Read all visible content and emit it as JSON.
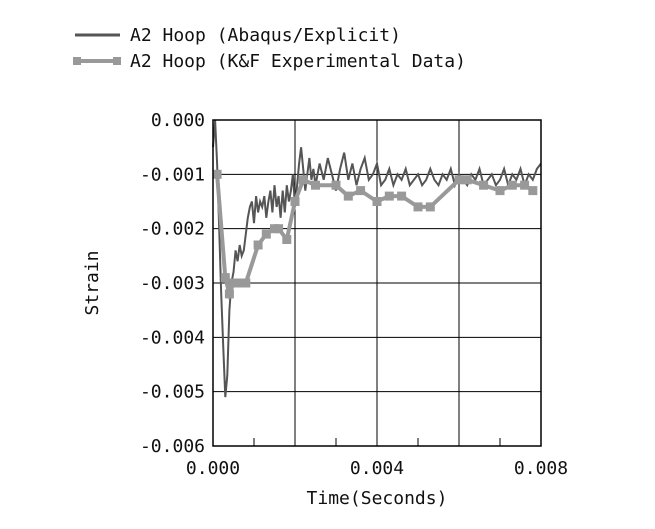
{
  "chart_data": {
    "type": "line",
    "title": "",
    "xlabel": "Time(Seconds)",
    "ylabel": "Strain",
    "xlim": [
      0.0,
      0.008
    ],
    "ylim": [
      -0.006,
      0.0
    ],
    "x_ticks": [
      0.0,
      0.002,
      0.004,
      0.006,
      0.008
    ],
    "x_tick_labels": [
      "0.000",
      "",
      "0.004",
      "",
      "0.008"
    ],
    "y_ticks": [
      0.0,
      -0.001,
      -0.002,
      -0.003,
      -0.004,
      -0.005,
      -0.006
    ],
    "y_tick_labels": [
      "0.000",
      "-0.001",
      "-0.002",
      "-0.003",
      "-0.004",
      "-0.005",
      "-0.006"
    ],
    "grid": true,
    "legend_position": "top-left",
    "series": [
      {
        "name": "A2 Hoop (Abaqus/Explicit)",
        "color": "#555555",
        "marker": "none",
        "x": [
          0.0,
          5e-05,
          0.0001,
          0.00015,
          0.0002,
          0.00025,
          0.0003,
          0.00035,
          0.0004,
          0.00045,
          0.0005,
          0.00055,
          0.0006,
          0.00065,
          0.0007,
          0.00075,
          0.0008,
          0.00085,
          0.0009,
          0.00095,
          0.001,
          0.00105,
          0.0011,
          0.00115,
          0.0012,
          0.00125,
          0.0013,
          0.00135,
          0.0014,
          0.00145,
          0.0015,
          0.00155,
          0.0016,
          0.00165,
          0.0017,
          0.00175,
          0.0018,
          0.00185,
          0.0019,
          0.00195,
          0.002,
          0.00205,
          0.0021,
          0.00215,
          0.0022,
          0.00225,
          0.0023,
          0.00235,
          0.0024,
          0.00245,
          0.0025,
          0.0026,
          0.0027,
          0.0028,
          0.0029,
          0.003,
          0.0031,
          0.0032,
          0.0033,
          0.0034,
          0.0035,
          0.0036,
          0.0037,
          0.0038,
          0.0039,
          0.004,
          0.0041,
          0.0042,
          0.0043,
          0.0044,
          0.0045,
          0.0046,
          0.0047,
          0.0048,
          0.0049,
          0.005,
          0.0051,
          0.0052,
          0.0053,
          0.0054,
          0.0055,
          0.0056,
          0.0057,
          0.0058,
          0.0059,
          0.006,
          0.0061,
          0.0062,
          0.0063,
          0.0064,
          0.0065,
          0.0066,
          0.0067,
          0.0068,
          0.0069,
          0.007,
          0.0071,
          0.0072,
          0.0073,
          0.0074,
          0.0075,
          0.0076,
          0.0077,
          0.0078,
          0.0079,
          0.008
        ],
        "y": [
          -0.0005,
          0.0,
          -0.0008,
          -0.002,
          -0.0032,
          -0.0042,
          -0.0051,
          -0.0047,
          -0.0035,
          -0.003,
          -0.0028,
          -0.0024,
          -0.0026,
          -0.0023,
          -0.0025,
          -0.0024,
          -0.0021,
          -0.0018,
          -0.0016,
          -0.0015,
          -0.0019,
          -0.0014,
          -0.0017,
          -0.0015,
          -0.0016,
          -0.0014,
          -0.0018,
          -0.0015,
          -0.0013,
          -0.0017,
          -0.0012,
          -0.0016,
          -0.0014,
          -0.0018,
          -0.0013,
          -0.0017,
          -0.0012,
          -0.0015,
          -0.0013,
          -0.001,
          -0.0016,
          -0.0012,
          -0.0008,
          -0.0005,
          -0.0009,
          -0.0013,
          -0.001,
          -0.0007,
          -0.0011,
          -0.0009,
          -0.0012,
          -0.0008,
          -0.0011,
          -0.0007,
          -0.001,
          -0.0013,
          -0.0009,
          -0.0006,
          -0.0011,
          -0.0008,
          -0.0012,
          -0.0009,
          -0.0007,
          -0.0011,
          -0.001,
          -0.0008,
          -0.0012,
          -0.0011,
          -0.0009,
          -0.0012,
          -0.001,
          -0.0011,
          -0.0009,
          -0.0012,
          -0.0011,
          -0.001,
          -0.0012,
          -0.0011,
          -0.0009,
          -0.0011,
          -0.0012,
          -0.001,
          -0.0011,
          -0.0009,
          -0.0012,
          -0.001,
          -0.0011,
          -0.0012,
          -0.001,
          -0.0011,
          -0.0009,
          -0.0012,
          -0.0011,
          -0.001,
          -0.0012,
          -0.0011,
          -0.0009,
          -0.0012,
          -0.001,
          -0.0011,
          -0.0009,
          -0.0012,
          -0.001,
          -0.0011,
          -0.0009,
          -0.0008
        ]
      },
      {
        "name": "A2 Hoop (K&F Experimental Data)",
        "color": "#999999",
        "marker": "square",
        "x": [
          0.0001,
          0.0003,
          0.0004,
          0.0005,
          0.0006,
          0.0007,
          0.0008,
          0.0011,
          0.0013,
          0.0015,
          0.0016,
          0.0018,
          0.002,
          0.0022,
          0.0025,
          0.003,
          0.0033,
          0.0036,
          0.004,
          0.0043,
          0.0046,
          0.005,
          0.0053,
          0.006,
          0.0062,
          0.0066,
          0.007,
          0.0073,
          0.0076,
          0.0078
        ],
        "y": [
          -0.001,
          -0.0029,
          -0.0032,
          -0.003,
          -0.003,
          -0.003,
          -0.003,
          -0.0023,
          -0.0021,
          -0.002,
          -0.002,
          -0.0022,
          -0.0015,
          -0.0011,
          -0.0012,
          -0.0012,
          -0.0014,
          -0.0013,
          -0.0015,
          -0.0014,
          -0.0014,
          -0.0016,
          -0.0016,
          -0.0011,
          -0.0011,
          -0.0012,
          -0.0013,
          -0.0012,
          -0.0012,
          -0.0013
        ]
      }
    ]
  }
}
